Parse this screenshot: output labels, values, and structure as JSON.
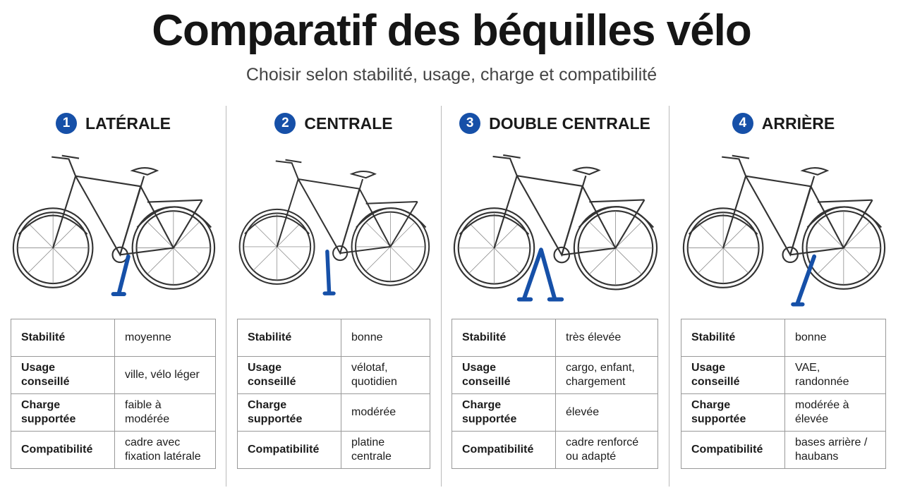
{
  "header": {
    "title": "Comparatif des béquilles vélo",
    "subtitle": "Choisir selon stabilité, usage, charge et compatibilité"
  },
  "columns": [
    {
      "number": "1",
      "name": "LATÉRALE",
      "rows": [
        {
          "label": "Stabilité",
          "value": "moyenne"
        },
        {
          "label": "Usage conseillé",
          "value": "ville, vélo léger"
        },
        {
          "label": "Charge supportée",
          "value": "faible à modérée"
        },
        {
          "label": "Compatibilité",
          "value": "cadre avec fixation latérale"
        }
      ]
    },
    {
      "number": "2",
      "name": "CENTRALE",
      "rows": [
        {
          "label": "Stabilité",
          "value": "bonne"
        },
        {
          "label": "Usage conseillé",
          "value": "vélotaf, quotidien"
        },
        {
          "label": "Charge supportée",
          "value": "modérée"
        },
        {
          "label": "Compatibilité",
          "value": "platine centrale"
        }
      ]
    },
    {
      "number": "3",
      "name": "DOUBLE CENTRALE",
      "rows": [
        {
          "label": "Stabilité",
          "value": "très élevée"
        },
        {
          "label": "Usage conseillé",
          "value": "cargo, enfant, chargement"
        },
        {
          "label": "Charge supportée",
          "value": "élevée"
        },
        {
          "label": "Compatibilité",
          "value": "cadre renforcé ou adapté"
        }
      ]
    },
    {
      "number": "4",
      "name": "ARRIÈRE",
      "rows": [
        {
          "label": "Stabilité",
          "value": "bonne"
        },
        {
          "label": "Usage conseillé",
          "value": "VAE, randonnée"
        },
        {
          "label": "Charge supportée",
          "value": "modérée à élevée"
        },
        {
          "label": "Compatibilité",
          "value": "bases arrière / haubans"
        }
      ]
    }
  ]
}
